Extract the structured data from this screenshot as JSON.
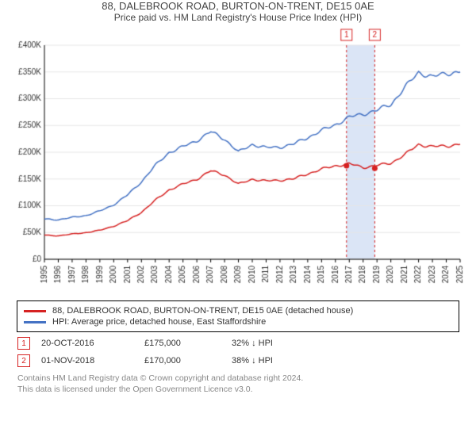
{
  "title": "88, DALEBROOK ROAD, BURTON-ON-TRENT, DE15 0AE",
  "subtitle": "Price paid vs. HM Land Registry's House Price Index (HPI)",
  "chart": {
    "type": "line",
    "plot_bg": "#ffffff",
    "grid_color": "#e6e6e6",
    "axis_color": "#000000",
    "tick_font_size": 10,
    "x_years": [
      1995,
      1996,
      1997,
      1998,
      1999,
      2000,
      2001,
      2002,
      2003,
      2004,
      2005,
      2006,
      2007,
      2008,
      2009,
      2010,
      2011,
      2012,
      2013,
      2014,
      2015,
      2016,
      2017,
      2018,
      2019,
      2020,
      2021,
      2022,
      2023,
      2024,
      2025
    ],
    "ylim": [
      0,
      400000
    ],
    "ytick_step": 50000,
    "ytick_prefix": "£",
    "ytick_suffix": "K",
    "series": [
      {
        "name": "property",
        "label": "88, DALEBROOK ROAD, BURTON-ON-TRENT, DE15 0AE (detached house)",
        "color": "#d62222",
        "line_width": 1.5,
        "values_by_year": {
          "1995": 45000,
          "1996": 44000,
          "1997": 47000,
          "1998": 50000,
          "1999": 54000,
          "2000": 62000,
          "2001": 72000,
          "2002": 88000,
          "2003": 110000,
          "2004": 130000,
          "2005": 140000,
          "2006": 150000,
          "2007": 165000,
          "2008": 158000,
          "2009": 140000,
          "2010": 150000,
          "2011": 146000,
          "2012": 148000,
          "2013": 150000,
          "2014": 160000,
          "2015": 168000,
          "2016": 175000,
          "2017": 178000,
          "2018": 172000,
          "2019": 175000,
          "2020": 180000,
          "2021": 195000,
          "2022": 215000,
          "2023": 210000,
          "2024": 212000,
          "2025": 215000
        }
      },
      {
        "name": "hpi",
        "label": "HPI: Average price, detached house, East Staffordshire",
        "color": "#4472c4",
        "line_width": 1.5,
        "values_by_year": {
          "1995": 75000,
          "1996": 74000,
          "1997": 78000,
          "1998": 82000,
          "1999": 90000,
          "2000": 102000,
          "2001": 120000,
          "2002": 145000,
          "2003": 175000,
          "2004": 200000,
          "2005": 210000,
          "2006": 222000,
          "2007": 238000,
          "2008": 225000,
          "2009": 200000,
          "2010": 215000,
          "2011": 208000,
          "2012": 210000,
          "2013": 215000,
          "2014": 228000,
          "2015": 240000,
          "2016": 252000,
          "2017": 265000,
          "2018": 272000,
          "2019": 278000,
          "2020": 290000,
          "2021": 320000,
          "2022": 350000,
          "2023": 340000,
          "2024": 348000,
          "2025": 350000
        }
      }
    ],
    "sale_markers": [
      {
        "num": "1",
        "year": 2016.8,
        "price": 175000,
        "color": "#d62222",
        "dash_color": "#d62222"
      },
      {
        "num": "2",
        "year": 2018.84,
        "price": 170000,
        "color": "#d62222",
        "dash_color": "#d62222"
      }
    ],
    "shade_band": {
      "from_year": 2016.8,
      "to_year": 2018.84,
      "color": "#dbe5f6"
    }
  },
  "legend": {
    "items": [
      {
        "color": "#d62222",
        "label": "88, DALEBROOK ROAD, BURTON-ON-TRENT, DE15 0AE (detached house)"
      },
      {
        "color": "#4472c4",
        "label": "HPI: Average price, detached house, East Staffordshire"
      }
    ]
  },
  "sales": [
    {
      "num": "1",
      "color": "#d62222",
      "date": "20-OCT-2016",
      "price": "£175,000",
      "delta": "32% ↓ HPI"
    },
    {
      "num": "2",
      "color": "#d62222",
      "date": "01-NOV-2018",
      "price": "£170,000",
      "delta": "38% ↓ HPI"
    }
  ],
  "footnote_line1": "Contains HM Land Registry data © Crown copyright and database right 2024.",
  "footnote_line2": "This data is licensed under the Open Government Licence v3.0."
}
